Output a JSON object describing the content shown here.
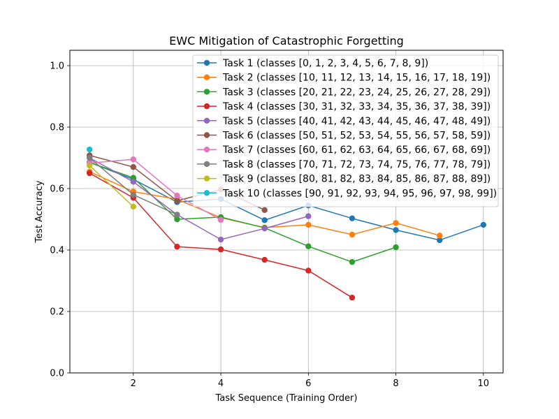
{
  "chart_data": {
    "type": "line",
    "title": "EWC Mitigation of Catastrophic Forgetting",
    "xlabel": "Task Sequence (Training Order)",
    "ylabel": "Test Accuracy",
    "xlim": [
      0.55,
      10.45
    ],
    "ylim": [
      0.0,
      1.05
    ],
    "xticks": [
      2,
      4,
      6,
      8,
      10
    ],
    "xtick_labels": [
      "2",
      "4",
      "6",
      "8",
      "10"
    ],
    "yticks": [
      0.0,
      0.2,
      0.4,
      0.6,
      0.8,
      1.0
    ],
    "ytick_labels": [
      "0.0",
      "0.2",
      "0.4",
      "0.6",
      "0.8",
      "1.0"
    ],
    "grid": true,
    "legend_position": "top-right",
    "series": [
      {
        "name": "Task 1 (classes [0, 1, 2, 3, 4, 5, 6, 7, 8, 9])",
        "color": "#1f77b4",
        "x": [
          1,
          2,
          3,
          4,
          5,
          6,
          7,
          8,
          9,
          10
        ],
        "y": [
          0.685,
          0.63,
          0.556,
          0.566,
          0.497,
          0.545,
          0.503,
          0.465,
          0.432,
          0.482
        ]
      },
      {
        "name": "Task 2 (classes [10, 11, 12, 13, 14, 15, 16, 17, 18, 19])",
        "color": "#ff7f0e",
        "x": [
          1,
          2,
          3,
          4,
          5,
          6,
          7,
          8,
          9
        ],
        "y": [
          0.655,
          0.59,
          0.565,
          0.505,
          0.473,
          0.482,
          0.45,
          0.488,
          0.447
        ]
      },
      {
        "name": "Task 3 (classes [20, 21, 22, 23, 24, 25, 26, 27, 28, 29])",
        "color": "#2ca02c",
        "x": [
          1,
          2,
          3,
          4,
          5,
          6,
          7,
          8
        ],
        "y": [
          0.685,
          0.635,
          0.5,
          0.507,
          0.472,
          0.412,
          0.361,
          0.409
        ]
      },
      {
        "name": "Task 4 (classes [30, 31, 32, 33, 34, 35, 36, 37, 38, 39])",
        "color": "#d62728",
        "x": [
          1,
          2,
          3,
          4,
          5,
          6,
          7
        ],
        "y": [
          0.65,
          0.57,
          0.411,
          0.402,
          0.368,
          0.333,
          0.245
        ]
      },
      {
        "name": "Task 5 (classes [40, 41, 42, 43, 44, 45, 46, 47, 48, 49])",
        "color": "#9467bd",
        "x": [
          1,
          2,
          3,
          4,
          5,
          6
        ],
        "y": [
          0.7,
          0.622,
          0.515,
          0.434,
          0.47,
          0.51
        ]
      },
      {
        "name": "Task 6 (classes [50, 51, 52, 53, 54, 55, 56, 57, 58, 59])",
        "color": "#8c564b",
        "x": [
          1,
          2,
          3,
          4,
          5
        ],
        "y": [
          0.708,
          0.67,
          0.56,
          0.597,
          0.53
        ]
      },
      {
        "name": "Task 7 (classes [60, 61, 62, 63, 64, 65, 66, 67, 68, 69])",
        "color": "#e377c2",
        "x": [
          1,
          2,
          3,
          4
        ],
        "y": [
          0.683,
          0.695,
          0.577,
          0.498
        ]
      },
      {
        "name": "Task 8 (classes [70, 71, 72, 73, 74, 75, 76, 77, 78, 79])",
        "color": "#7f7f7f",
        "x": [
          1,
          2,
          3
        ],
        "y": [
          0.7,
          0.58,
          0.515
        ]
      },
      {
        "name": "Task 9 (classes [80, 81, 82, 83, 84, 85, 86, 87, 88, 89])",
        "color": "#bcbd22",
        "x": [
          1,
          2
        ],
        "y": [
          0.675,
          0.541
        ]
      },
      {
        "name": "Task 10 (classes [90, 91, 92, 93, 94, 95, 96, 97, 98, 99])",
        "color": "#17becf",
        "x": [
          1
        ],
        "y": [
          0.727
        ]
      }
    ]
  }
}
